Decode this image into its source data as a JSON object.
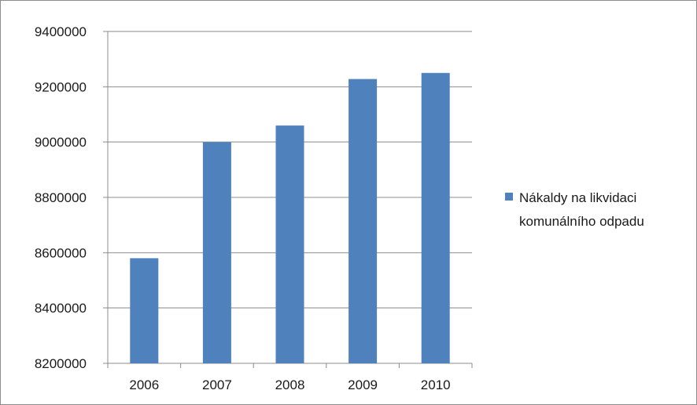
{
  "chart_data": {
    "type": "bar",
    "categories": [
      "2006",
      "2007",
      "2008",
      "2009",
      "2010"
    ],
    "series": [
      {
        "name": "Nákaldy na likvidaci komunálního odpadu",
        "values": [
          8580000,
          9000000,
          9060000,
          9228000,
          9250000
        ],
        "color": "#4f81bd"
      }
    ],
    "ylim": [
      8200000,
      9400000
    ],
    "yticks": [
      "8200000",
      "8400000",
      "8600000",
      "8800000",
      "9000000",
      "9200000",
      "9400000"
    ],
    "grid": true,
    "legend_position": "right",
    "legend_lines": [
      "Nákaldy na likvidaci",
      "komunálního odpadu"
    ]
  }
}
